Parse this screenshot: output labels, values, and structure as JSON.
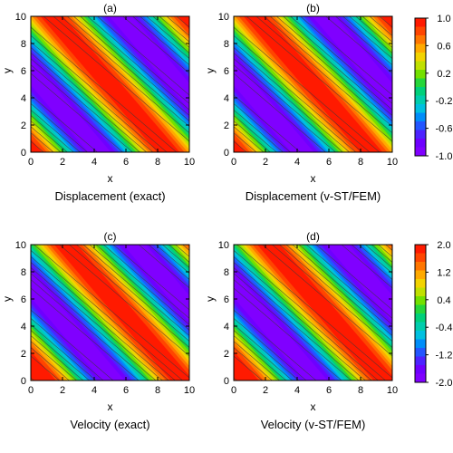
{
  "chart_data": [
    {
      "type": "heatmap",
      "panel": "(a)",
      "caption": "Displacement (exact)",
      "xlabel": "x",
      "ylabel": "y",
      "xlim": [
        0,
        10
      ],
      "ylim": [
        0,
        10
      ],
      "x_ticks": [
        0,
        2,
        4,
        6,
        8,
        10
      ],
      "y_ticks": [
        0,
        2,
        4,
        6,
        8,
        10
      ],
      "field": "cos(2*pi*(x+y-10)/10)",
      "value_range": [
        -1.0,
        1.0
      ],
      "contour_lines": true,
      "colorbar": "top"
    },
    {
      "type": "heatmap",
      "panel": "(b)",
      "caption": "Displacement (v-ST/FEM)",
      "xlabel": "x",
      "ylabel": "y",
      "xlim": [
        0,
        10
      ],
      "ylim": [
        0,
        10
      ],
      "x_ticks": [
        0,
        2,
        4,
        6,
        8,
        10
      ],
      "y_ticks": [
        0,
        2,
        4,
        6,
        8,
        10
      ],
      "field": "cos(2*pi*(x+y-10)/10)",
      "value_range": [
        -1.0,
        1.0
      ],
      "contour_lines": true,
      "colorbar": "top"
    },
    {
      "type": "heatmap",
      "panel": "(c)",
      "caption": "Velocity (exact)",
      "xlabel": "x",
      "ylabel": "y",
      "xlim": [
        0,
        10
      ],
      "ylim": [
        0,
        10
      ],
      "x_ticks": [
        0,
        2,
        4,
        6,
        8,
        10
      ],
      "y_ticks": [
        0,
        2,
        4,
        6,
        8,
        10
      ],
      "field": "2*cos(2*pi*(x+y-11)/10)",
      "value_range": [
        -2.0,
        2.0
      ],
      "contour_lines": true,
      "colorbar": "bottom"
    },
    {
      "type": "heatmap",
      "panel": "(d)",
      "caption": "Velocity (v-ST/FEM)",
      "xlabel": "x",
      "ylabel": "y",
      "xlim": [
        0,
        10
      ],
      "ylim": [
        0,
        10
      ],
      "x_ticks": [
        0,
        2,
        4,
        6,
        8,
        10
      ],
      "y_ticks": [
        0,
        2,
        4,
        6,
        8,
        10
      ],
      "field": "2*cos(2*pi*(x+y-11)/10)",
      "value_range": [
        -2.0,
        2.0
      ],
      "contour_lines": true,
      "colorbar": "bottom"
    }
  ],
  "colorbars": [
    {
      "id": "top",
      "ticks": [
        "1.0",
        "0.6",
        "0.2",
        "-0.2",
        "-0.6",
        "-1.0"
      ],
      "values": [
        1.0,
        0.6,
        0.2,
        -0.2,
        -0.6,
        -1.0
      ]
    },
    {
      "id": "bottom",
      "ticks": [
        "2.0",
        "1.2",
        "0.4",
        "-0.4",
        "-1.2",
        "-2.0"
      ],
      "values": [
        2.0,
        1.2,
        0.4,
        -0.4,
        -1.2,
        -2.0
      ]
    }
  ],
  "colormap": [
    "#8000ff",
    "#6a00ff",
    "#3a3aff",
    "#0080ff",
    "#00c0e0",
    "#00d0a0",
    "#00d060",
    "#60e000",
    "#c0e000",
    "#ffd000",
    "#ff9000",
    "#ff5000",
    "#ff1a00"
  ]
}
